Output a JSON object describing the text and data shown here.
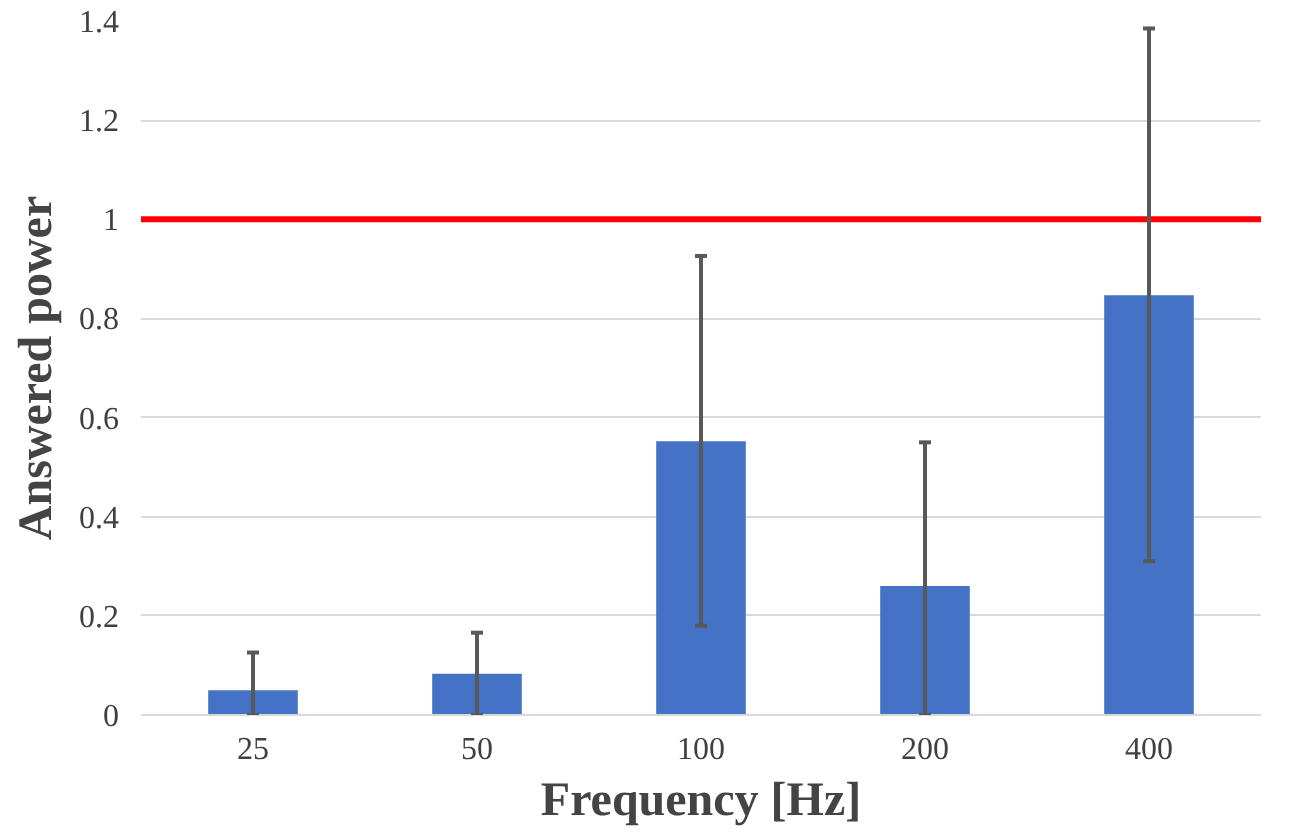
{
  "chart_data": {
    "type": "bar",
    "xlabel": "Frequency [Hz]",
    "ylabel": "Answered power",
    "categories": [
      "25",
      "50",
      "100",
      "200",
      "400"
    ],
    "values": [
      0.05,
      0.083,
      0.552,
      0.26,
      0.847
    ],
    "errors": [
      [
        0,
        0.126
      ],
      [
        0,
        0.166
      ],
      [
        0.18,
        0.926
      ],
      [
        0,
        0.55
      ],
      [
        0.31,
        1.385
      ]
    ],
    "color": "#4472c4",
    "ylim": [
      0,
      1.4
    ],
    "yticks": [
      0,
      0.2,
      0.4,
      0.6,
      0.8,
      1,
      1.2,
      1.4
    ],
    "grid": "y",
    "ref_lines": [
      {
        "axis": "y",
        "value": 1,
        "color": "#ff0000"
      }
    ]
  }
}
